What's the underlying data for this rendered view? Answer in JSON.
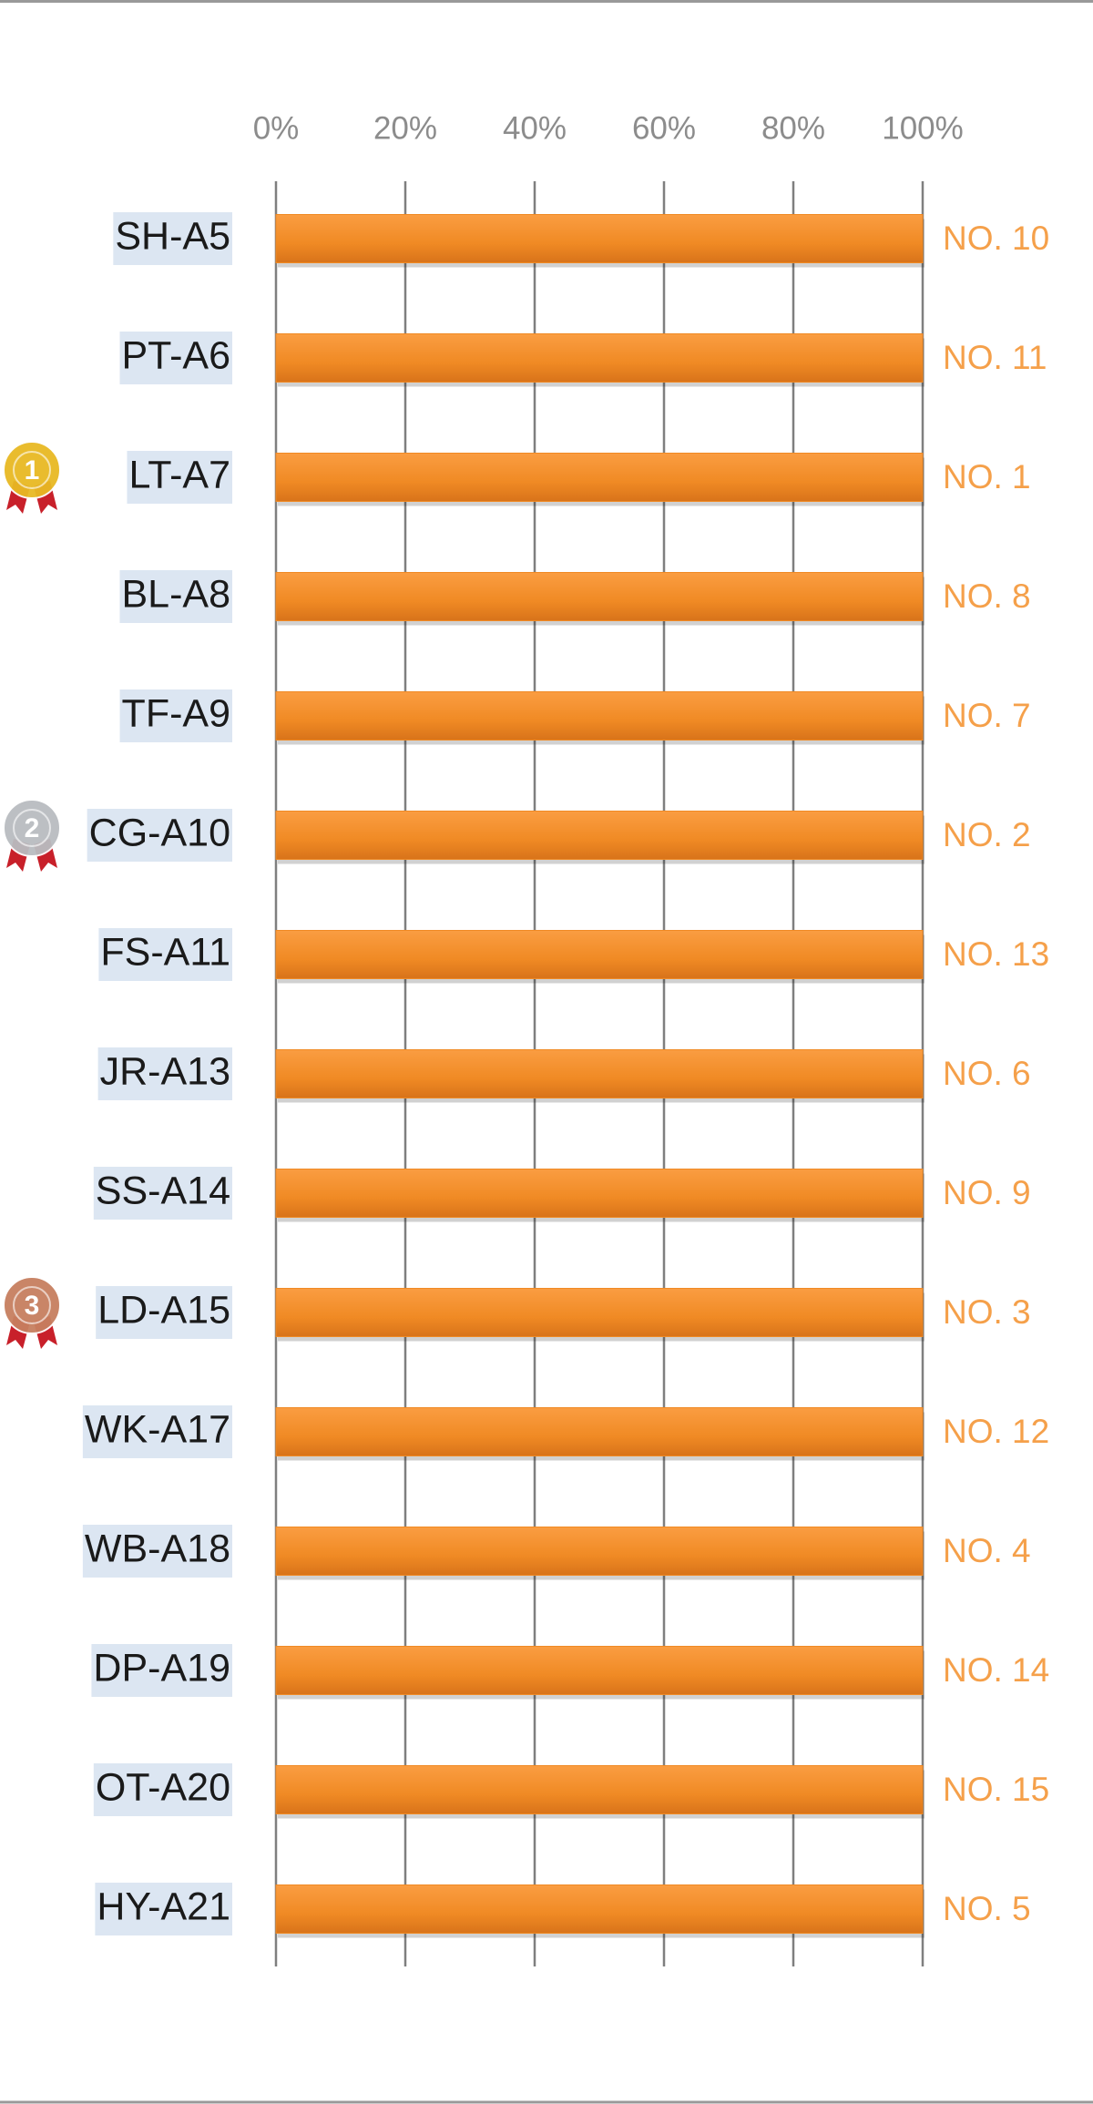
{
  "chart_data": {
    "type": "bar",
    "orientation": "horizontal",
    "categories": [
      "SH-A5",
      "PT-A6",
      "LT-A7",
      "BL-A8",
      "TF-A9",
      "CG-A10",
      "FS-A11",
      "JR-A13",
      "SS-A14",
      "LD-A15",
      "WK-A17",
      "WB-A18",
      "DP-A19",
      "OT-A20",
      "HY-A21"
    ],
    "values": [
      100,
      100,
      100,
      100,
      100,
      100,
      100,
      100,
      100,
      100,
      100,
      100,
      100,
      100,
      100
    ],
    "rank_labels": [
      "NO. 10",
      "NO. 11",
      "NO. 1",
      "NO. 8",
      "NO. 7",
      "NO. 2",
      "NO. 13",
      "NO. 6",
      "NO. 9",
      "NO. 3",
      "NO. 12",
      "NO. 4",
      "NO. 14",
      "NO. 15",
      "NO. 5"
    ],
    "medal_labels": [
      null,
      null,
      "1",
      null,
      null,
      "2",
      null,
      null,
      null,
      "3",
      null,
      null,
      null,
      null,
      null
    ],
    "medal_colors": [
      null,
      null,
      "#e8b923",
      null,
      null,
      "#b9bcc0",
      null,
      null,
      null,
      "#c77f5f",
      null,
      null,
      null,
      null,
      null
    ],
    "color": "#f08a24",
    "label_color": "#f5a04a",
    "xlim": [
      0,
      100
    ],
    "xticks": [
      {
        "value": 0,
        "label": "0%"
      },
      {
        "value": 20,
        "label": "20%"
      },
      {
        "value": 40,
        "label": "40%"
      },
      {
        "value": 60,
        "label": "60%"
      },
      {
        "value": 80,
        "label": "80%"
      },
      {
        "value": 100,
        "label": "100%"
      }
    ],
    "grid": true
  }
}
